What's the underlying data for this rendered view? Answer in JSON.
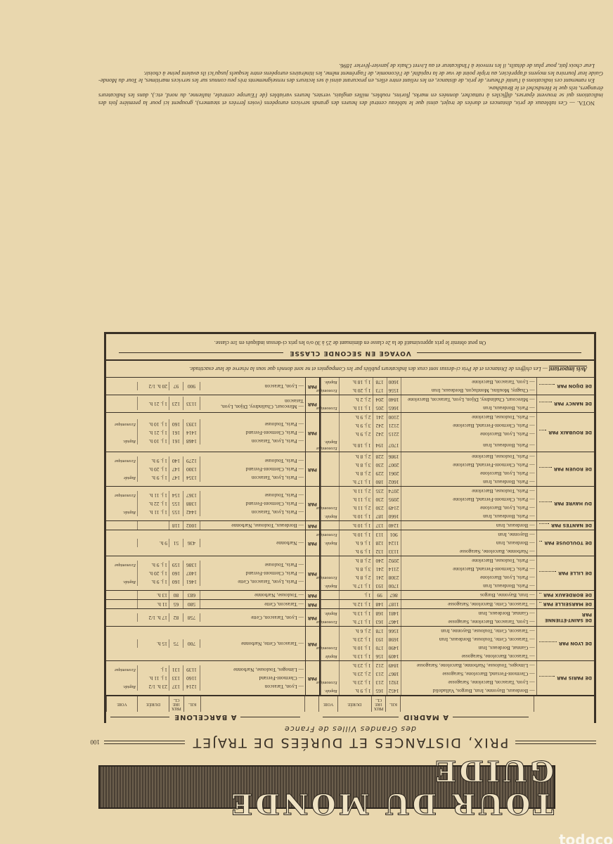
{
  "banner": "TOUR DU MONDE GUIDE",
  "page_number": "100",
  "title": "PRIX, DISTANCES ET DURÉES DE TRAJET",
  "subtitle": "des Grandes Villes de France",
  "destinations": {
    "madrid": "A MADRID",
    "barcelone": "A BARCELONE"
  },
  "columns": {
    "kil": "KIL.",
    "prix": "PRIX 1re cl.",
    "duree": "DURÉE",
    "voie": "VOIE"
  },
  "par_label": "PAR",
  "rows": [
    {
      "city": "DE PARIS PAR",
      "madrid": [
        {
          "route": "— Bordeaux, Bayonne, Irun, Burgos, Valladolid",
          "km": "1452",
          "prix": "165",
          "duree": "1 j. 9 h.",
          "voie": "Rapide."
        },
        {
          "route": "— Lyon, Tarascon, Barcelone, Saragosse",
          "km": "1921",
          "prix": "213",
          "duree": "1 j. 23 h.",
          "voie": "Economique"
        },
        {
          "route": "— Clermont-Ferrand, Barcelone, Saragosse",
          "km": "1867",
          "prix": "213",
          "duree": "2 j. 23 h.",
          "voie": ""
        },
        {
          "route": "— Limoges, Toulouse, Narbonne, Barcelone, Saragosse",
          "km": "1849",
          "prix": "212",
          "duree": "1 j. 23 h.",
          "voie": ""
        }
      ],
      "barcelone": [
        {
          "route": "— Lyon, Tarascon",
          "km": "1214",
          "prix": "137",
          "duree": "23 h. 1/2",
          "voie": "Rapide."
        },
        {
          "route": "— Clermont-Ferrand",
          "km": "1160",
          "prix": "133",
          "duree": "1 j. 11 h.",
          "voie": ""
        },
        {
          "route": "— Limoges, Toulouse, Narbonne",
          "km": "1139",
          "prix": "131",
          "duree": "1 j.",
          "voie": "Economique"
        }
      ]
    },
    {
      "city": "DE LYON PAR",
      "madrid": [
        {
          "route": "— Tarascon, Barcelone, Saragosse",
          "km": "1409",
          "prix": "156",
          "duree": "1 j. 13 h.",
          "voie": "Rapide"
        },
        {
          "route": "— Gannat, Bordeaux, Irun",
          "km": "1490",
          "prix": "170",
          "duree": "1 j. 10 h.",
          "voie": "Economique"
        },
        {
          "route": "— Tarascon, Cette, Toulouse, Bordeaux, Irun",
          "km": "1698",
          "prix": "193",
          "duree": "1 j. 23 h.",
          "voie": ""
        },
        {
          "route": "— Tarascon, Cette, Toulouse, Bayonne, Irun",
          "km": "1566",
          "prix": "178",
          "duree": "2 j. 6 h.",
          "voie": ""
        }
      ],
      "barcelone": [
        {
          "route": "— Tarascon, Cette, Narbonne",
          "km": "700",
          "prix": "75",
          "duree": "15 h.",
          "voie": ""
        }
      ]
    },
    {
      "city": "DE SAINT-ÉTIENNE PAR",
      "madrid": [
        {
          "route": "— Lyon, Tarascon, Barcelone, Saragosse",
          "km": "1467",
          "prix": "163",
          "duree": "1 j. 17 h.",
          "voie": "Economique"
        },
        {
          "route": "— Gannat, Bordeaux, Irun",
          "km": "1481",
          "prix": "168",
          "duree": "1 j. 13 h.",
          "voie": "Rapide."
        }
      ],
      "barcelone": [
        {
          "route": "— Lyon, Tarascon, Cette",
          "km": "758",
          "prix": "82",
          "duree": "17 h. 1/2",
          "voie": ""
        }
      ]
    },
    {
      "city": "DE MARSEILLE PAR",
      "madrid": [
        {
          "route": "— Tarascon, Cette, Barcelone, Saragosse",
          "km": "1187",
          "prix": "148",
          "duree": "1 j. 12 h.",
          "voie": ""
        }
      ],
      "barcelone": [
        {
          "route": "— Tarascon, Cette",
          "km": "580",
          "prix": "65",
          "duree": "11 h.",
          "voie": ""
        }
      ]
    },
    {
      "city": "DE BORDEAUX PAR",
      "madrid": [
        {
          "route": "— Irun, Bayonne, Burgos",
          "km": "867",
          "prix": "99",
          "duree": "1 j.",
          "voie": ""
        }
      ],
      "barcelone": [
        {
          "route": "— Toulouse, Narbonne",
          "km": "683",
          "prix": "80",
          "duree": "13 h.",
          "voie": ""
        }
      ]
    },
    {
      "city": "DE LILLE PAR",
      "madrid": [
        {
          "route": "— Paris, Bordeaux, Irun",
          "km": "1700",
          "prix": "193",
          "duree": "1 j. 17 h.",
          "voie": "Rapide."
        },
        {
          "route": "— Paris, Lyon, Barcelone",
          "km": "2308",
          "prix": "241",
          "duree": "2 j. 8 h.",
          "voie": "Economique"
        },
        {
          "route": "— Paris, Clermont-Ferrand, Barcelone",
          "km": "2114",
          "prix": "241",
          "duree": "3 j. 8 h.",
          "voie": ""
        },
        {
          "route": "— Paris, Toulouse, Barcelone",
          "km": "2092",
          "prix": "240",
          "duree": "2 j. 8 h.",
          "voie": ""
        }
      ],
      "barcelone": [
        {
          "route": "— Paris, Lyon, Tarascon, Cette",
          "km": "1461",
          "prix": "160",
          "duree": "1 j. 9 h.",
          "voie": "Rapide."
        },
        {
          "route": "— Paris, Clermont-Ferrand",
          "km": "1407",
          "prix": "160",
          "duree": "1 j. 20 h.",
          "voie": ""
        },
        {
          "route": "— Paris, Toulouse",
          "km": "1386",
          "prix": "159",
          "duree": "1 j. 9 h.",
          "voie": "Economique"
        }
      ]
    },
    {
      "city": "DE TOULOUSE PAR",
      "madrid": [
        {
          "route": "— Narbonne, Barcelone, Saragosse",
          "km": "1133",
          "prix": "132",
          "duree": "1 j. 9 h.",
          "voie": ""
        },
        {
          "route": "— Bordeaux, Irun",
          "km": "1124",
          "prix": "128",
          "duree": "1 j. 6 h.",
          "voie": "Rapide."
        },
        {
          "route": "— Bayonne, Irun",
          "km": "901",
          "prix": "113",
          "duree": "1 j. 10 h.",
          "voie": "Economique"
        }
      ],
      "barcelone": [
        {
          "route": "— Narbonne",
          "km": "436",
          "prix": "51",
          "duree": "9 h.",
          "voie": ""
        }
      ]
    },
    {
      "city": "DE NANTES PAR",
      "madrid": [
        {
          "route": "— Bordeaux, Irun",
          "km": "1240",
          "prix": "137",
          "duree": "1 j. 10 h.",
          "voie": ""
        }
      ],
      "barcelone": [
        {
          "route": "— Bordeaux, Toulouse, Narbonne",
          "km": "1002",
          "prix": "118",
          "duree": "",
          "voie": ""
        }
      ]
    },
    {
      "city": "DU HAVRE PAR",
      "madrid": [
        {
          "route": "— Paris, Bordeaux, Irun",
          "km": "1660",
          "prix": "187",
          "duree": "1 j. 10 h.",
          "voie": "Rapide."
        },
        {
          "route": "— Paris, Lyon, Barcelone",
          "km": "2149",
          "prix": "230",
          "duree": "2 j. 11 h.",
          "voie": "Economique"
        },
        {
          "route": "— Paris, Clermont-Ferrand, Barcelone",
          "km": "2095",
          "prix": "230",
          "duree": "3 j. 11 h.",
          "voie": ""
        },
        {
          "route": "— Paris, Toulouse, Barcelone",
          "km": "2074",
          "prix": "235",
          "duree": "2 j. 11 h.",
          "voie": ""
        }
      ],
      "barcelone": [
        {
          "route": "— Paris, Lyon, Tarascon",
          "km": "1442",
          "prix": "155",
          "duree": "1 j. 11 h.",
          "voie": "Rapide."
        },
        {
          "route": "— Paris, Clermont-Ferrand",
          "km": "1388",
          "prix": "155",
          "duree": "1 j. 22 h.",
          "voie": ""
        },
        {
          "route": "— Paris, Toulouse",
          "km": "1367",
          "prix": "154",
          "duree": "1 j. 11 h.",
          "voie": "Economique"
        }
      ]
    },
    {
      "city": "DE ROUEN PAR",
      "madrid": [
        {
          "route": "— Paris, Bordeaux, Irun",
          "km": "1602",
          "prix": "180",
          "duree": "1 j. 17 h.",
          "voie": ""
        },
        {
          "route": "— Paris, Lyon, Barcelone",
          "km": "2061",
          "prix": "229",
          "duree": "2 j. 8 h.",
          "voie": ""
        },
        {
          "route": "— Paris, Clermont-Ferrand, Barcelone",
          "km": "2007",
          "prix": "230",
          "duree": "3 j. 8 h.",
          "voie": ""
        },
        {
          "route": "— Paris, Toulouse, Barcelone",
          "km": "1986",
          "prix": "228",
          "duree": "2 j. 8 h.",
          "voie": ""
        }
      ],
      "barcelone": [
        {
          "route": "— Paris, Lyon, Tarascon",
          "km": "1354",
          "prix": "147",
          "duree": "1 j. 9 h.",
          "voie": "Rapide"
        },
        {
          "route": "— Paris, Clermont-Ferrand",
          "km": "1300",
          "prix": "147",
          "duree": "1 j. 20 h.",
          "voie": ""
        },
        {
          "route": "— Paris, Toulouse",
          "km": "1279",
          "prix": "140",
          "duree": "1 j. 9 h.",
          "voie": "Economique"
        }
      ]
    },
    {
      "city": "DE ROUBAIX PAR",
      "madrid": [
        {
          "route": "— Paris, Bordeaux, Irun",
          "km": "1707",
          "prix": "194",
          "duree": "1 j. 18 h.",
          "voie": "Economique Rapide."
        },
        {
          "route": "— Paris, Lyon, Barcelone",
          "km": "2215",
          "prix": "242",
          "duree": "2 j. 9 h.",
          "voie": ""
        },
        {
          "route": "— Paris, Clermont-Ferrand, Barcelone",
          "km": "2121",
          "prix": "242",
          "duree": "3 j. 9 h.",
          "voie": ""
        },
        {
          "route": "— Paris, Toulouse, Barcelone",
          "km": "2100",
          "prix": "241",
          "duree": "2 j. 9 h.",
          "voie": ""
        }
      ],
      "barcelone": [
        {
          "route": "— Paris, Lyon, Tarascon",
          "km": "1468",
          "prix": "161",
          "duree": "1 j. 10 h.",
          "voie": "Rapide."
        },
        {
          "route": "— Paris, Clermont-Ferrand",
          "km": "1414",
          "prix": "161",
          "duree": "1 j. 21 h.",
          "voie": ""
        },
        {
          "route": "— Paris, Toulouse",
          "km": "1393",
          "prix": "160",
          "duree": "1 j. 10 h.",
          "voie": "Economique"
        }
      ]
    },
    {
      "city": "DE NANCY PAR",
      "madrid": [
        {
          "route": "— Paris, Bordeaux, Irun",
          "km": "1665",
          "prix": "205",
          "duree": "1 j. 11 h.",
          "voie": "Economique"
        },
        {
          "route": "— Mirecourt, Chalindrey, Dijon, Lyon, Tarascon, Barcelone",
          "km": "1840",
          "prix": "204",
          "duree": "2 j. 2 h.",
          "voie": ""
        }
      ],
      "barcelone": [
        {
          "route": "— Mirecourt, Chalindrey, Dijon, Lyon, Tarascon",
          "km": "1133",
          "prix": "123",
          "duree": "1 j. 21 h.",
          "voie": ""
        }
      ]
    },
    {
      "city": "DE DIJON PAR",
      "madrid": [
        {
          "route": "— Chagny, Moulins, Montluçon, Bordeaux, Irun",
          "km": "1556",
          "prix": "173",
          "duree": "1 j. 20 h.",
          "voie": "Economique"
        },
        {
          "route": "— Lyon, Tarascon, Barcelone",
          "km": "1600",
          "prix": "178",
          "duree": "1 j. 18 h.",
          "voie": "Rapide."
        }
      ],
      "barcelone": [
        {
          "route": "— Lyon, Tarascon",
          "km": "900",
          "prix": "97",
          "duree": "20 h. 1/2",
          "voie": ""
        }
      ]
    }
  ],
  "avis": {
    "label": "Avis important",
    "text": "— Les chiffres de Distances et de Prix ci-dessus sont ceux des Indicateurs publiés par les Compagnies et ne sont donnés que sous la réserve de leur exactitude."
  },
  "seconde": {
    "title": "VOYAGE EN SECONDE CLASSE",
    "text": "On peut obtenir le prix approximatif de la 2e classe en diminuant de 25 à 30 o/o les prix ci-dessus indiqués en 1re classe."
  },
  "nota": {
    "label": "NOTA.",
    "p1": "— Ces tableaux de prix, distances et durées de trajet, ainsi que le tableau central des heures des grands services européens (voies ferrées et steamers), groupent ici pour la première fois des indications qui se trouvent éparses, difficiles à rattacher, données en marks, florins, roubles, milles anglais, verstes, heures variables (de l'Europe centrale, italienne, du nord, etc.), dans les Indicateurs étrangers, tels que le Hendschel et le Bradshaw.",
    "p2": "En ramenant ces indications à l'unité d'heure, de prix, de distance, en les reliant entre elles, en procurant ainsi à ses lecteurs des renseignements très peu connus sur les services maritimes, le Tour du Monde-Guide leur fournira les moyens d'apprécier, au triple point de vue de la rapidité, de l'économie, de l'agrément même, les itinéraires européens entre lesquels jusqu'ici ils avaient peine à choisir.",
    "p3": "Leur choix fait, pour plus de détails, il les renvoie à l'Indicateur et au Livret Chaix de janvier-février 1896."
  },
  "watermark": "todocolec"
}
